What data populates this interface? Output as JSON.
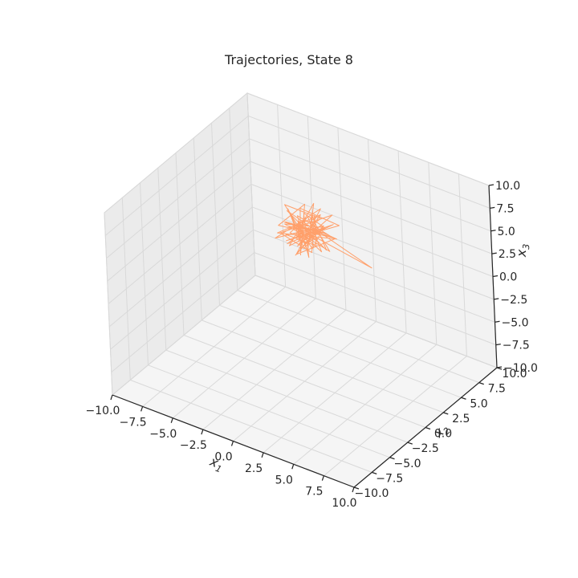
{
  "chart_data": {
    "type": "line3d",
    "title": "Trajectories, State 8",
    "xlabel": "x",
    "xlabel_sub": "1",
    "ylabel": "x",
    "ylabel_sub": "2",
    "zlabel": "x",
    "zlabel_sub": "3",
    "xlim": [
      -10,
      10
    ],
    "ylim": [
      -10,
      10
    ],
    "zlim": [
      -10,
      10
    ],
    "ticks": [
      -10.0,
      -7.5,
      -5.0,
      -2.5,
      0.0,
      2.5,
      5.0,
      7.5,
      10.0
    ],
    "tick_labels": [
      "−10.0",
      "−7.5",
      "−5.0",
      "−2.5",
      "0.0",
      "2.5",
      "5.0",
      "7.5",
      "10.0"
    ],
    "grid": true,
    "line_color": "#ffa06b",
    "pane_color": "#f2f2f2",
    "grid_color": "#d9d9d9",
    "series": [
      {
        "points": [
          [
            -2.0,
            4.1,
            1.5
          ],
          [
            -1.2,
            5.3,
            2.8
          ],
          [
            -3.1,
            3.2,
            3.6
          ],
          [
            -0.4,
            4.8,
            0.9
          ],
          [
            -2.6,
            6.1,
            2.2
          ],
          [
            -1.8,
            3.6,
            4.3
          ],
          [
            -3.8,
            5.0,
            1.1
          ],
          [
            -0.9,
            2.9,
            3.0
          ],
          [
            -2.2,
            5.8,
            4.6
          ],
          [
            -3.4,
            4.2,
            0.4
          ],
          [
            -1.0,
            6.4,
            2.5
          ],
          [
            -2.9,
            3.0,
            2.0
          ],
          [
            0.3,
            5.1,
            3.9
          ],
          [
            -3.6,
            6.2,
            3.1
          ],
          [
            -1.5,
            2.6,
            1.4
          ],
          [
            -2.4,
            4.9,
            5.0
          ],
          [
            -4.0,
            3.8,
            2.6
          ],
          [
            -0.6,
            5.6,
            1.8
          ],
          [
            -2.8,
            4.5,
            3.8
          ],
          [
            -1.3,
            3.4,
            0.7
          ],
          [
            -3.2,
            6.0,
            2.9
          ],
          [
            -0.2,
            4.0,
            4.1
          ],
          [
            -2.7,
            2.8,
            1.9
          ],
          [
            -1.6,
            5.7,
            3.3
          ],
          [
            -3.9,
            4.6,
            4.4
          ],
          [
            -0.8,
            3.1,
            2.1
          ],
          [
            -2.1,
            6.3,
            0.9
          ],
          [
            -3.3,
            3.5,
            3.5
          ],
          [
            -1.1,
            4.7,
            2.7
          ],
          [
            4.2,
            3.0,
            2.6
          ],
          [
            -1.9,
            4.4,
            2.4
          ],
          [
            -3.0,
            5.4,
            1.3
          ],
          [
            -0.5,
            3.7,
            3.4
          ],
          [
            -2.5,
            2.7,
            4.0
          ],
          [
            -1.4,
            6.0,
            1.6
          ],
          [
            -3.7,
            4.3,
            2.8
          ],
          [
            -0.1,
            5.2,
            2.2
          ],
          [
            -2.3,
            3.3,
            0.6
          ],
          [
            -1.7,
            5.9,
            4.2
          ],
          [
            -3.5,
            2.5,
            2.3
          ],
          [
            -0.7,
            4.6,
            3.7
          ],
          [
            -2.0,
            3.9,
            1.0
          ],
          [
            -4.2,
            5.5,
            3.2
          ],
          [
            -1.0,
            2.8,
            2.0
          ],
          [
            -2.6,
            6.1,
            3.0
          ],
          [
            -0.3,
            4.2,
            1.5
          ],
          [
            -3.1,
            3.6,
            4.8
          ],
          [
            -1.5,
            5.0,
            2.4
          ],
          [
            -2.8,
            4.0,
            -0.2
          ],
          [
            -1.2,
            3.8,
            2.9
          ],
          [
            -3.4,
            5.6,
            2.0
          ],
          [
            -0.6,
            3.2,
            3.1
          ],
          [
            -2.2,
            4.8,
            1.7
          ],
          [
            -1.8,
            2.9,
            3.8
          ],
          [
            -3.0,
            6.2,
            2.5
          ],
          [
            -0.9,
            4.5,
            0.8
          ],
          [
            -2.5,
            3.4,
            3.6
          ],
          [
            -1.3,
            5.3,
            2.1
          ],
          [
            -3.6,
            4.1,
            1.6
          ],
          [
            -0.4,
            3.0,
            2.7
          ],
          [
            -2.1,
            5.7,
            3.4
          ],
          [
            -1.6,
            4.3,
            0.5
          ],
          [
            -3.2,
            2.7,
            2.9
          ],
          [
            -0.8,
            6.0,
            3.9
          ],
          [
            -2.4,
            3.7,
            1.2
          ],
          [
            -1.1,
            4.9,
            4.5
          ],
          [
            -3.8,
            3.3,
            2.2
          ],
          [
            -0.2,
            5.5,
            1.9
          ],
          [
            -2.7,
            4.4,
            3.3
          ],
          [
            -1.9,
            3.1,
            2.3
          ]
        ]
      }
    ]
  }
}
